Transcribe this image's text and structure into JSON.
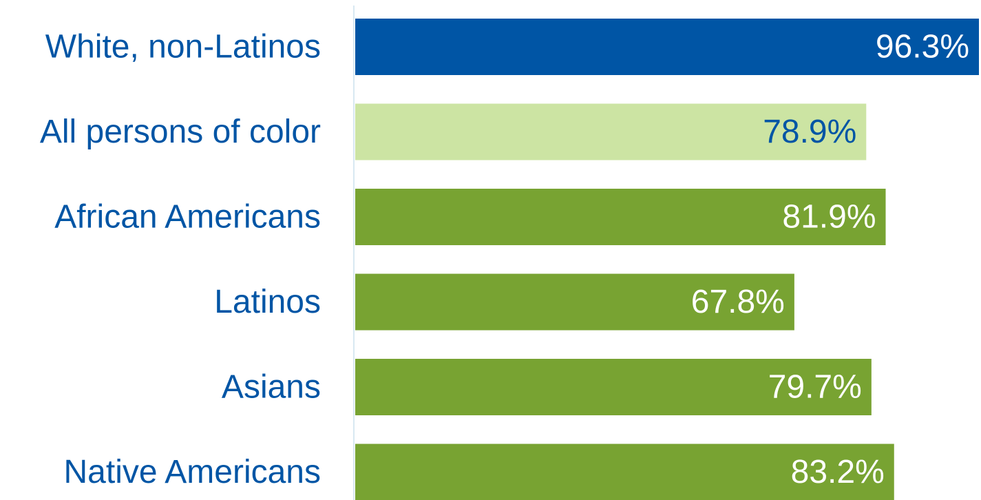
{
  "chart_data": {
    "type": "bar",
    "orientation": "horizontal",
    "categories": [
      "White, non-Latinos",
      "All persons of color",
      "African Americans",
      "Latinos",
      "Asians",
      "Native Americans"
    ],
    "values": [
      96.3,
      78.9,
      81.9,
      67.8,
      79.7,
      83.2
    ],
    "value_labels": [
      "96.3%",
      "78.9%",
      "81.9%",
      "67.8%",
      "79.7%",
      "83.2%"
    ],
    "value_unit": "%",
    "xlim": [
      0,
      96.3
    ],
    "grid": false,
    "legend": "none",
    "title": "",
    "xlabel": "",
    "ylabel": ""
  },
  "colors": {
    "highlight_bar": "#0055a5",
    "group_bar": "#cce4a3",
    "category_bar": "#78a332",
    "label_text": "#0055a5",
    "value_text_dark": "#0055a5",
    "value_text_light": "#ffffff",
    "axis_line": "#d8e8f2"
  },
  "bar_styles": [
    "highlight_bar",
    "group_bar",
    "category_bar",
    "category_bar",
    "category_bar",
    "category_bar"
  ],
  "value_text_styles": [
    "value_text_light",
    "value_text_dark",
    "value_text_light",
    "value_text_light",
    "value_text_light",
    "value_text_light"
  ]
}
